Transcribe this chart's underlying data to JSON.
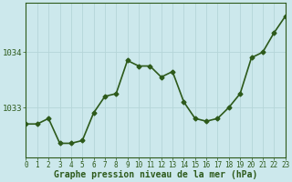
{
  "x": [
    0,
    1,
    2,
    3,
    4,
    5,
    6,
    7,
    8,
    9,
    10,
    11,
    12,
    13,
    14,
    15,
    16,
    17,
    18,
    19,
    20,
    21,
    22,
    23
  ],
  "y": [
    1032.7,
    1032.7,
    1032.8,
    1032.35,
    1032.35,
    1032.4,
    1032.9,
    1033.2,
    1033.25,
    1033.85,
    1033.75,
    1033.75,
    1033.55,
    1033.65,
    1033.1,
    1032.8,
    1032.75,
    1032.8,
    1033.0,
    1033.25,
    1033.9,
    1034.0,
    1034.35,
    1034.65
  ],
  "color": "#2d5a1b",
  "bg_color": "#cce8ec",
  "grid_color": "#b5d5d8",
  "xlabel": "Graphe pression niveau de la mer (hPa)",
  "yticks": [
    1033,
    1034
  ],
  "ylim": [
    1032.1,
    1034.9
  ],
  "xlim": [
    0,
    23
  ],
  "marker": "D",
  "markersize": 2.5,
  "linewidth": 1.2,
  "xlabel_fontsize": 7,
  "ytick_fontsize": 6.5,
  "xtick_fontsize": 5.5
}
